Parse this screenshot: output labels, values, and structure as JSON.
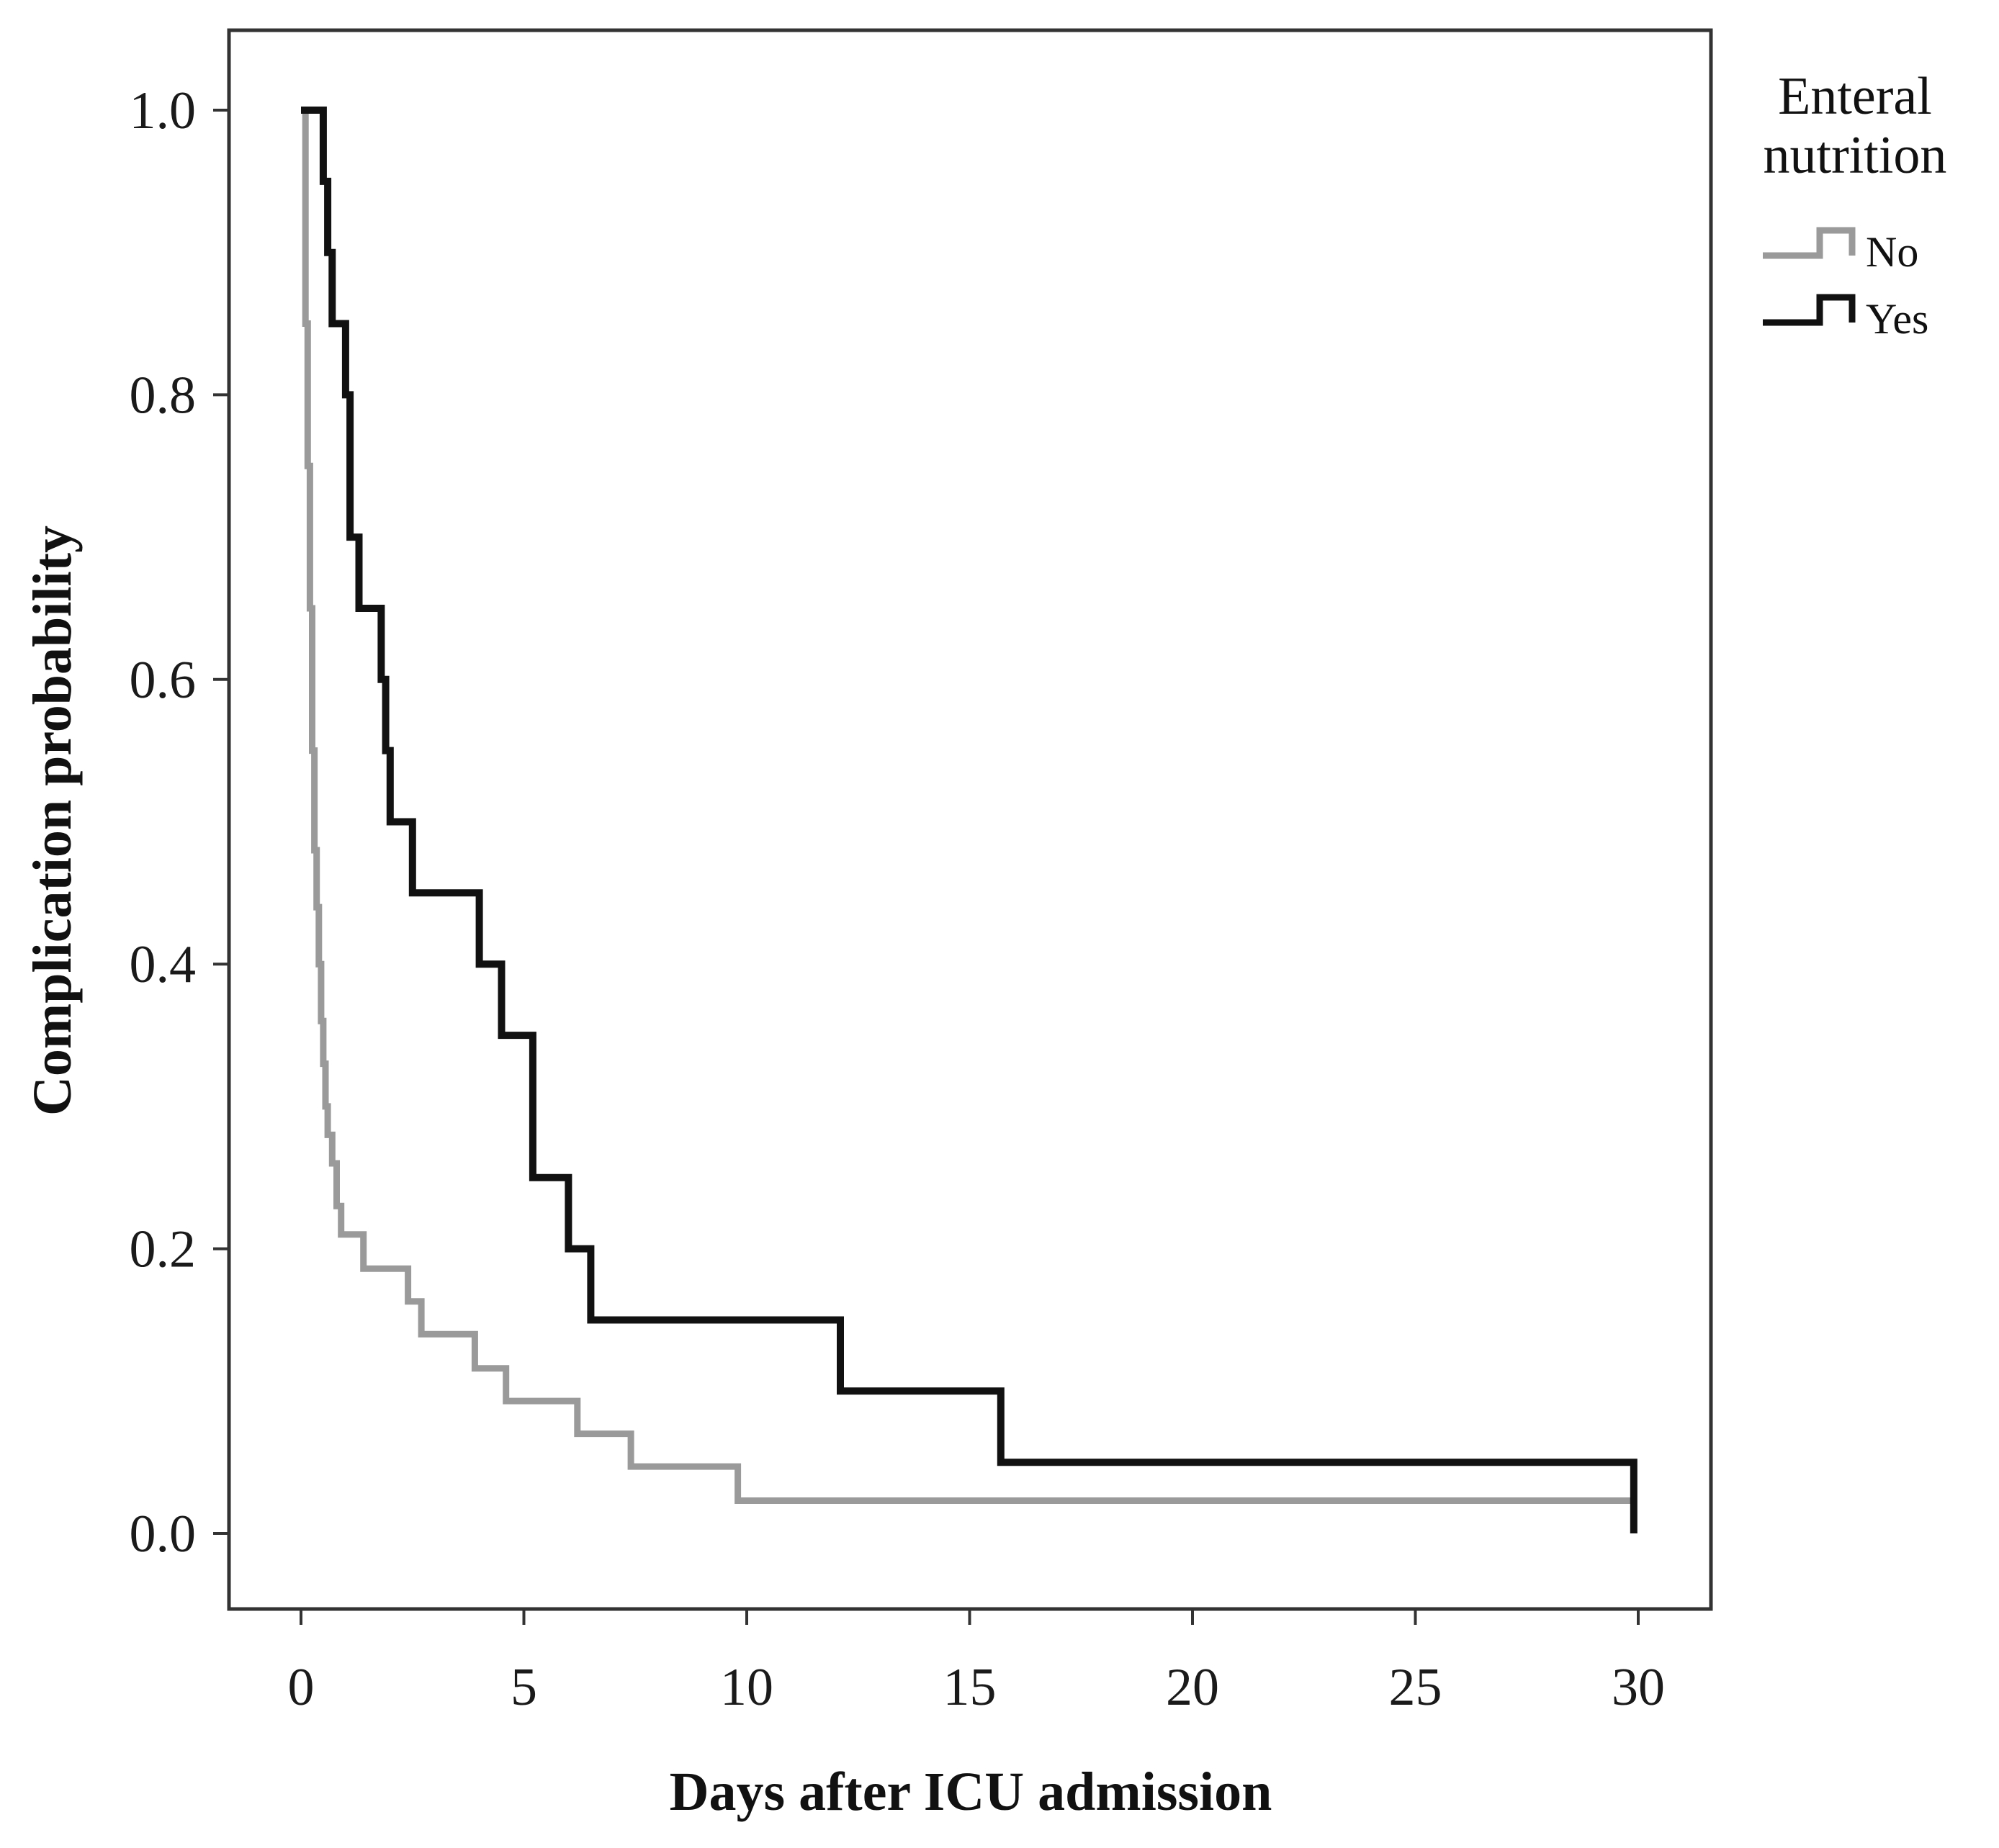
{
  "chart_data": {
    "type": "line",
    "subtype": "kaplan-meier step",
    "title": "",
    "xlabel": "Days after ICU admission",
    "ylabel": "Complication probability",
    "xlim": [
      0,
      30
    ],
    "ylim": [
      0.0,
      1.0
    ],
    "x_ticks": [
      0,
      5,
      10,
      15,
      20,
      25,
      30
    ],
    "x_tick_labels": [
      "0",
      "5",
      "10",
      "15",
      "20",
      "25",
      "30"
    ],
    "y_ticks": [
      0.0,
      0.2,
      0.4,
      0.6,
      0.8,
      1.0
    ],
    "y_tick_labels": [
      "0.0",
      "0.2",
      "0.4",
      "0.6",
      "0.8",
      "1.0"
    ],
    "grid": false,
    "legend": {
      "title": [
        "Enteral",
        "nutrition"
      ],
      "position": "outside-right-top",
      "entries": [
        "No",
        "Yes"
      ]
    },
    "series": [
      {
        "name": "No",
        "color": "#9a9a9a",
        "x": [
          0,
          0.1,
          0.15,
          0.2,
          0.25,
          0.3,
          0.35,
          0.4,
          0.45,
          0.5,
          0.55,
          0.6,
          0.7,
          0.8,
          0.9,
          1.0,
          1.4,
          2.4,
          2.7,
          3.9,
          4.6,
          6.2,
          7.4,
          9.8,
          29.9
        ],
        "y": [
          1.0,
          0.85,
          0.75,
          0.65,
          0.55,
          0.48,
          0.44,
          0.4,
          0.36,
          0.33,
          0.3,
          0.28,
          0.26,
          0.23,
          0.21,
          0.21,
          0.186,
          0.163,
          0.14,
          0.116,
          0.093,
          0.07,
          0.047,
          0.023,
          0.0
        ]
      },
      {
        "name": "Yes",
        "color": "#111111",
        "x": [
          0,
          0.5,
          0.6,
          0.7,
          1.0,
          1.1,
          1.3,
          1.8,
          1.9,
          2.0,
          2.5,
          4.0,
          4.5,
          5.2,
          6.0,
          6.5,
          12.1,
          15.7,
          29.9
        ],
        "y": [
          1.0,
          0.95,
          0.9,
          0.85,
          0.8,
          0.7,
          0.65,
          0.6,
          0.55,
          0.5,
          0.45,
          0.4,
          0.35,
          0.25,
          0.2,
          0.15,
          0.1,
          0.05,
          0.0
        ]
      }
    ]
  }
}
